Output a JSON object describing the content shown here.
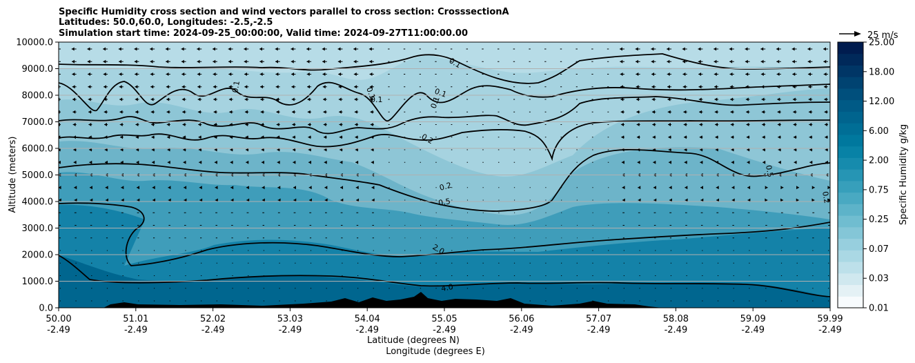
{
  "chart_data": {
    "type": "heatmap",
    "title_lines": [
      "Specific Humidity cross section and wind vectors parallel to cross section: CrosssectionA",
      "Latitudes: 50.0,60.0, Longitudes: -2.5,-2.5",
      "Simulation start time: 2024-09-25_00:00:00, Valid time: 2024-09-27T11:00:00.00"
    ],
    "ylabel": "Altitude (meters)",
    "xlabel_lat": "Latitude (degrees N)",
    "xlabel_lon": "Longitude (degrees E)",
    "colorbar_label": "Specific Humidity g/kg",
    "y_ticks": [
      "0.0",
      "1000.0",
      "2000.0",
      "3000.0",
      "4000.0",
      "5000.0",
      "6000.0",
      "7000.0",
      "8000.0",
      "9000.0",
      "10000.0"
    ],
    "ylim": [
      0,
      10000
    ],
    "x_ticks_lat": [
      "50.00",
      "51.01",
      "52.02",
      "53.03",
      "54.04",
      "55.05",
      "56.06",
      "57.07",
      "58.08",
      "59.09",
      "59.99"
    ],
    "x_ticks_lon": [
      "-2.49",
      "-2.49",
      "-2.49",
      "-2.49",
      "-2.49",
      "-2.49",
      "-2.49",
      "-2.49",
      "-2.49",
      "-2.49",
      "-2.49"
    ],
    "colorbar_levels": [
      0.01,
      0.02,
      0.03,
      0.05,
      0.07,
      0.1,
      0.15,
      0.25,
      0.35,
      0.5,
      0.75,
      1.0,
      1.5,
      2.0,
      3.0,
      4.0,
      6.0,
      8.0,
      10.0,
      12.0,
      15.0,
      18.0,
      21.0,
      25.0
    ],
    "colorbar_tick_labels": [
      "0.01",
      "0.03",
      "0.07",
      "0.25",
      "0.75",
      "2.00",
      "6.00",
      "12.00",
      "18.00",
      "25.00"
    ],
    "colorbar_tick_levels": [
      0.01,
      0.03,
      0.07,
      0.25,
      0.75,
      2.0,
      6.0,
      12.0,
      18.0,
      25.0
    ],
    "colorbar_colors": [
      "#f7fbfd",
      "#e4f1f5",
      "#d0e8ef",
      "#bde0ea",
      "#aad8e4",
      "#97cfde",
      "#84c6d7",
      "#70bdd0",
      "#5db3c9",
      "#49a9c2",
      "#379fbb",
      "#2695b4",
      "#168bad",
      "#0882a6",
      "#00789e",
      "#006e96",
      "#00648e",
      "#005a86",
      "#004f7c",
      "#004371",
      "#003666",
      "#00295a",
      "#001c4f"
    ],
    "contour_labels": [
      "0.1",
      "0.1",
      "0.1",
      "0.1",
      "0.1",
      "0.2",
      "0.2",
      "0.5",
      "0.5",
      "2.0",
      "4.0",
      "0.2",
      "0.1"
    ],
    "wind_reference": "25 m/s",
    "grid": "horizontal"
  }
}
